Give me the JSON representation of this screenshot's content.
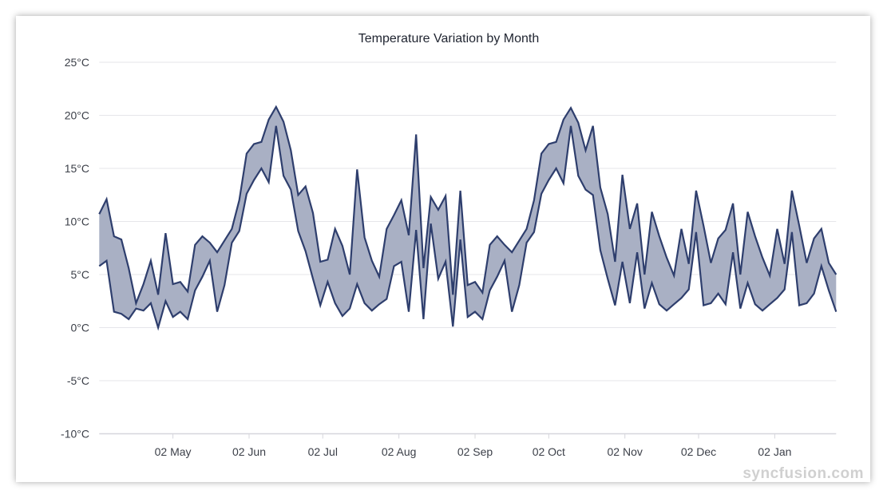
{
  "chart_data": {
    "type": "area",
    "subtype": "range-area",
    "title": "Temperature Variation by Month",
    "xlabel": "",
    "ylabel": "",
    "ylim": [
      -10,
      25
    ],
    "y_interval": 5,
    "y_tick_labels": [
      "-10°C",
      "-5°C",
      "0°C",
      "5°C",
      "10°C",
      "15°C",
      "20°C",
      "25°C"
    ],
    "x_tick_labels": [
      "02 May",
      "02 Jun",
      "02 Jul",
      "02 Aug",
      "02 Sep",
      "02 Oct",
      "02 Nov",
      "02 Dec",
      "02 Jan"
    ],
    "grid": "horizontal",
    "colors": {
      "fill": "#a9b0c4",
      "stroke": "#2e3e6d",
      "grid": "#e6e6ea",
      "text": "#3b3f48"
    },
    "x": [
      "Apr 02",
      "Apr 05",
      "Apr 08",
      "Apr 11",
      "Apr 14",
      "Apr 17",
      "Apr 20",
      "Apr 23",
      "Apr 26",
      "Apr 29",
      "May 02",
      "May 05",
      "May 08",
      "May 11",
      "May 14",
      "May 17",
      "May 20",
      "May 23",
      "May 26",
      "May 29",
      "Jun 01",
      "Jun 04",
      "Jun 07",
      "Jun 10",
      "Jun 13",
      "Jun 16",
      "Jun 19",
      "Jun 22",
      "Jun 25",
      "Jun 28",
      "Jul 01",
      "Jul 04",
      "Jul 07",
      "Jul 10",
      "Jul 13",
      "Jul 16",
      "Jul 19",
      "Jul 22",
      "Jul 25",
      "Jul 28",
      "Jul 31",
      "Aug 03",
      "Aug 06",
      "Aug 09",
      "Aug 12",
      "Aug 15",
      "Aug 18",
      "Aug 21",
      "Aug 24",
      "Aug 27",
      "Aug 30",
      "Sep 02",
      "Sep 05",
      "Sep 08",
      "Sep 11",
      "Sep 14",
      "Sep 17",
      "Sep 20",
      "Sep 23",
      "Sep 26",
      "Sep 29",
      "Oct 02",
      "Oct 05",
      "Oct 08",
      "Oct 11",
      "Oct 14",
      "Oct 17",
      "Oct 20",
      "Oct 23",
      "Oct 26",
      "Oct 29",
      "Nov 01",
      "Nov 04",
      "Nov 07",
      "Nov 10",
      "Nov 13",
      "Nov 16",
      "Nov 19",
      "Nov 22",
      "Nov 25",
      "Nov 28",
      "Dec 01",
      "Dec 04",
      "Dec 07",
      "Dec 10",
      "Dec 13",
      "Dec 16",
      "Dec 19",
      "Dec 22",
      "Dec 25",
      "Dec 28",
      "Dec 31",
      "Jan 03",
      "Jan 06",
      "Jan 09",
      "Jan 12",
      "Jan 15",
      "Jan 18",
      "Jan 21",
      "Jan 24",
      "Jan 27"
    ],
    "high": [
      10.7,
      12.1,
      8.6,
      8.3,
      5.6,
      2.3,
      4.1,
      6.3,
      3.1,
      8.9,
      4.1,
      4.3,
      3.4,
      7.8,
      8.6,
      8.0,
      7.1,
      8.2,
      9.3,
      12.0,
      16.4,
      17.3,
      17.5,
      19.6,
      20.8,
      19.4,
      16.7,
      12.5,
      13.3,
      10.8,
      6.2,
      6.4,
      9.3,
      7.7,
      5.0,
      14.9,
      8.5,
      6.3,
      4.8,
      9.3,
      10.6,
      12.0,
      8.7,
      18.2,
      5.6,
      12.3,
      11.1,
      12.4,
      3.1,
      12.9,
      4.0,
      4.3,
      3.3,
      7.8,
      8.6,
      7.8,
      7.1,
      8.2,
      9.3,
      12.0,
      16.4,
      17.3,
      17.5,
      19.6,
      20.7,
      19.3,
      16.7,
      19.0,
      13.2,
      10.7,
      6.2,
      14.4,
      9.3,
      11.7,
      5.0,
      10.9,
      8.6,
      6.6,
      4.9,
      9.3,
      6.0,
      12.9,
      9.6,
      6.1,
      8.4,
      9.2,
      11.7,
      5.0,
      10.9,
      8.6,
      6.6,
      4.9,
      9.3,
      6.0,
      12.9,
      9.6,
      6.1,
      8.4,
      9.3,
      6.1,
      5.0
    ],
    "low": [
      5.8,
      6.3,
      1.5,
      1.3,
      0.8,
      1.8,
      1.6,
      2.3,
      0.0,
      2.5,
      1.0,
      1.5,
      0.8,
      3.5,
      4.8,
      6.3,
      1.5,
      4.0,
      8.0,
      9.1,
      12.6,
      13.9,
      15.0,
      13.7,
      19.0,
      14.3,
      13.0,
      9.1,
      7.2,
      4.6,
      2.1,
      4.3,
      2.3,
      1.1,
      1.8,
      4.1,
      2.3,
      1.6,
      2.2,
      2.7,
      5.8,
      6.2,
      1.5,
      9.2,
      0.8,
      9.8,
      4.6,
      6.2,
      0.1,
      8.3,
      1.0,
      1.5,
      0.8,
      3.5,
      4.8,
      6.3,
      1.5,
      4.0,
      8.0,
      9.0,
      12.6,
      13.9,
      15.0,
      13.6,
      19.0,
      14.3,
      13.0,
      12.5,
      7.3,
      4.6,
      2.1,
      6.2,
      2.3,
      7.1,
      1.8,
      4.2,
      2.2,
      1.6,
      2.2,
      2.8,
      3.6,
      9.0,
      2.1,
      2.3,
      3.2,
      2.2,
      7.1,
      1.8,
      4.2,
      2.2,
      1.6,
      2.2,
      2.8,
      3.6,
      9.0,
      2.1,
      2.3,
      3.2,
      5.8,
      3.5,
      1.5
    ]
  },
  "watermark": "syncfusion.com"
}
